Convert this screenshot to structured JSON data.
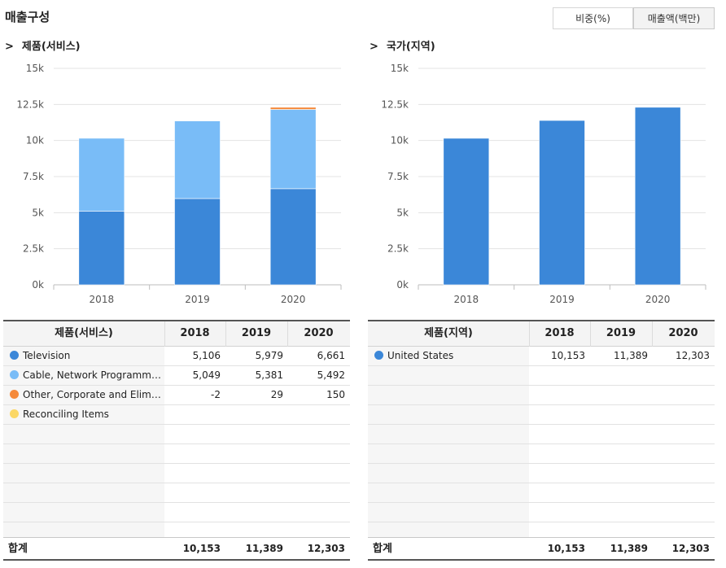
{
  "title": "매출구성",
  "toggles": {
    "ratio": "비중(%)",
    "amount": "매출액(백만)"
  },
  "left": {
    "section_title": "제품(서비스)",
    "table": {
      "header": [
        "제품(서비스)",
        "2018",
        "2019",
        "2020"
      ],
      "rows": [
        {
          "name": "Television",
          "color": "#3b87d8",
          "values": [
            "5,106",
            "5,979",
            "6,661"
          ]
        },
        {
          "name": "Cable, Network Programming",
          "color": "#79bcf7",
          "values": [
            "5,049",
            "5,381",
            "5,492"
          ]
        },
        {
          "name": "Other, Corporate and Eliminations",
          "color": "#f58a3b",
          "values": [
            "-2",
            "29",
            "150"
          ]
        },
        {
          "name": "Reconciling Items",
          "color": "#fbd766",
          "values": [
            "",
            "",
            ""
          ]
        }
      ],
      "total_label": "합계",
      "totals": [
        "10,153",
        "11,389",
        "12,303"
      ]
    }
  },
  "right": {
    "section_title": "국가(지역)",
    "table": {
      "header": [
        "제품(지역)",
        "2018",
        "2019",
        "2020"
      ],
      "rows": [
        {
          "name": "United States",
          "color": "#3b87d8",
          "values": [
            "10,153",
            "11,389",
            "12,303"
          ]
        }
      ],
      "total_label": "합계",
      "totals": [
        "10,153",
        "11,389",
        "12,303"
      ]
    }
  },
  "chart_data": [
    {
      "type": "bar",
      "stacked": true,
      "categories": [
        "2018",
        "2019",
        "2020"
      ],
      "series": [
        {
          "name": "Television",
          "color": "#3b87d8",
          "values": [
            5106,
            5979,
            6661
          ]
        },
        {
          "name": "Cable, Network Programming",
          "color": "#79bcf7",
          "values": [
            5049,
            5381,
            5492
          ]
        },
        {
          "name": "Other, Corporate and Eliminations",
          "color": "#f58a3b",
          "values": [
            -2,
            29,
            150
          ]
        },
        {
          "name": "Reconciling Items",
          "color": "#fbd766",
          "values": [
            0,
            0,
            0
          ]
        }
      ],
      "ylim": [
        0,
        15000
      ],
      "yticks": [
        0,
        2500,
        5000,
        7500,
        10000,
        12500,
        15000
      ],
      "ytick_labels": [
        "0k",
        "2.5k",
        "5k",
        "7.5k",
        "10k",
        "12.5k",
        "15k"
      ],
      "grid": true
    },
    {
      "type": "bar",
      "stacked": true,
      "categories": [
        "2018",
        "2019",
        "2020"
      ],
      "series": [
        {
          "name": "United States",
          "color": "#3b87d8",
          "values": [
            10153,
            11389,
            12303
          ]
        }
      ],
      "ylim": [
        0,
        15000
      ],
      "yticks": [
        0,
        2500,
        5000,
        7500,
        10000,
        12500,
        15000
      ],
      "ytick_labels": [
        "0k",
        "2.5k",
        "5k",
        "7.5k",
        "10k",
        "12.5k",
        "15k"
      ],
      "grid": true
    }
  ]
}
